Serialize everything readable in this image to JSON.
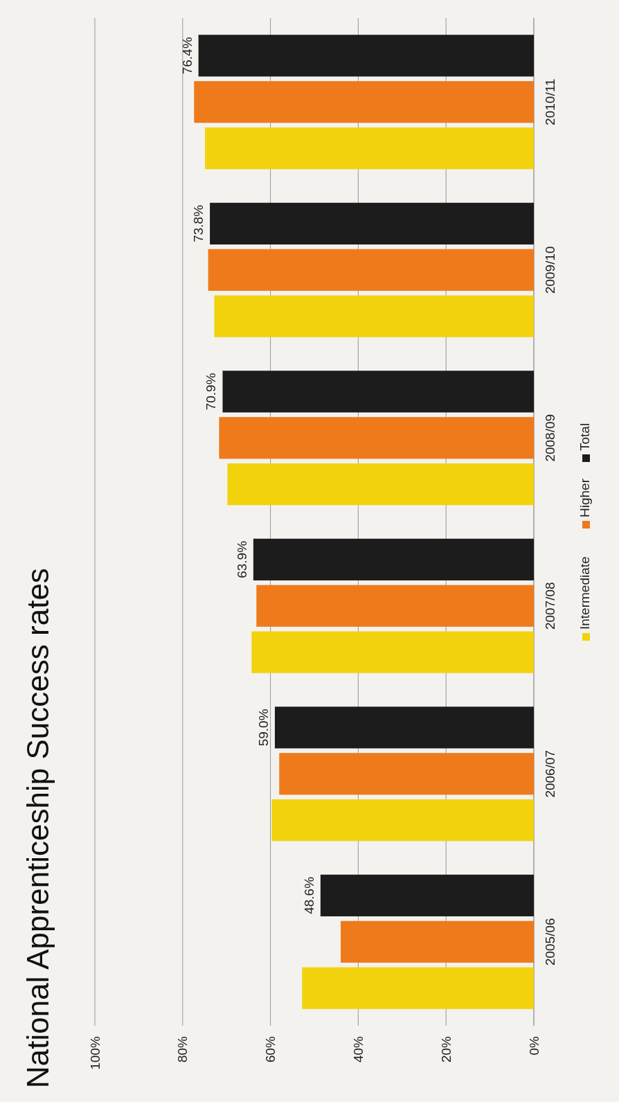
{
  "chart_data": {
    "type": "bar",
    "orientation": "horizontal",
    "title": "National Apprenticeship Success rates",
    "categories": [
      "2010/11",
      "2009/10",
      "2008/09",
      "2007/08",
      "2006/07",
      "2005/06"
    ],
    "series": [
      {
        "name": "Intermediate",
        "color": "#f2d20c",
        "values": [
          74.9,
          72.8,
          69.8,
          64.3,
          59.7,
          52.8
        ]
      },
      {
        "name": "Higher",
        "color": "#ee7a1c",
        "values": [
          77.4,
          74.2,
          71.7,
          63.2,
          58.0,
          44.0
        ]
      },
      {
        "name": "Total",
        "color": "#1c1c1c",
        "values": [
          76.4,
          73.8,
          70.9,
          63.9,
          59.0,
          48.6
        ],
        "value_labels": [
          "76.4%",
          "73.8%",
          "70.9%",
          "63.9%",
          "59.0%",
          "48.6%"
        ]
      }
    ],
    "xlim": [
      100,
      0
    ],
    "xticks": [
      {
        "value": 100,
        "label": "100%"
      },
      {
        "value": 80,
        "label": "80%"
      },
      {
        "value": 60,
        "label": "60%"
      },
      {
        "value": 40,
        "label": "40%"
      },
      {
        "value": 20,
        "label": "20%"
      },
      {
        "value": 0,
        "label": "0%"
      }
    ],
    "grid": "x",
    "legend": "right"
  }
}
